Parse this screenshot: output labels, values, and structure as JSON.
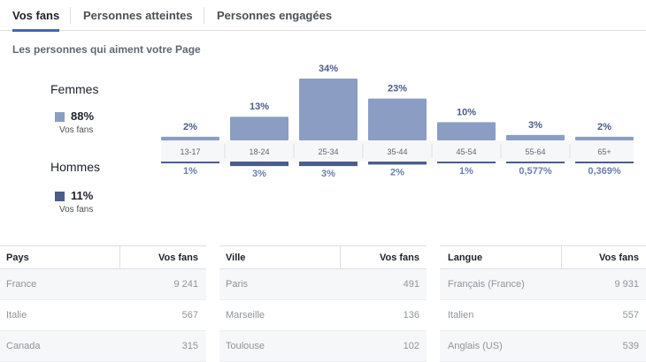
{
  "tabs": [
    {
      "label": "Vos fans",
      "active": true
    },
    {
      "label": "Personnes atteintes",
      "active": false
    },
    {
      "label": "Personnes engagées",
      "active": false
    }
  ],
  "section_title": "Les personnes qui aiment votre Page",
  "gender": {
    "women": {
      "label": "Femmes",
      "percent": "88%",
      "sub": "Vos fans",
      "color": "#8b9dc3"
    },
    "men": {
      "label": "Hommes",
      "percent": "11%",
      "sub": "Vos fans",
      "color": "#4b5d8a"
    }
  },
  "chart_data": {
    "type": "bar",
    "categories": [
      "13-17",
      "18-24",
      "25-34",
      "35-44",
      "45-54",
      "55-64",
      "65+"
    ],
    "series": [
      {
        "name": "Femmes",
        "values": [
          2,
          13,
          34,
          23,
          10,
          3,
          2
        ],
        "labels": [
          "2%",
          "13%",
          "34%",
          "23%",
          "10%",
          "3%",
          "2%"
        ],
        "color": "#8b9dc3"
      },
      {
        "name": "Hommes",
        "values": [
          1,
          3,
          3,
          2,
          1,
          0.577,
          0.369
        ],
        "labels": [
          "1%",
          "3%",
          "3%",
          "2%",
          "1%",
          "0,577%",
          "0,369%"
        ],
        "color": "#4b5d8a"
      }
    ]
  },
  "tables": {
    "pays": {
      "headers": [
        "Pays",
        "Vos fans"
      ],
      "rows": [
        [
          "France",
          "9 241"
        ],
        [
          "Italie",
          "567"
        ],
        [
          "Canada",
          "315"
        ]
      ]
    },
    "ville": {
      "headers": [
        "Ville",
        "Vos fans"
      ],
      "rows": [
        [
          "Paris",
          "491"
        ],
        [
          "Marseille",
          "136"
        ],
        [
          "Toulouse",
          "102"
        ]
      ]
    },
    "langue": {
      "headers": [
        "Langue",
        "Vos fans"
      ],
      "rows": [
        [
          "Français (France)",
          "9 931"
        ],
        [
          "Italien",
          "557"
        ],
        [
          "Anglais (US)",
          "539"
        ]
      ]
    }
  }
}
